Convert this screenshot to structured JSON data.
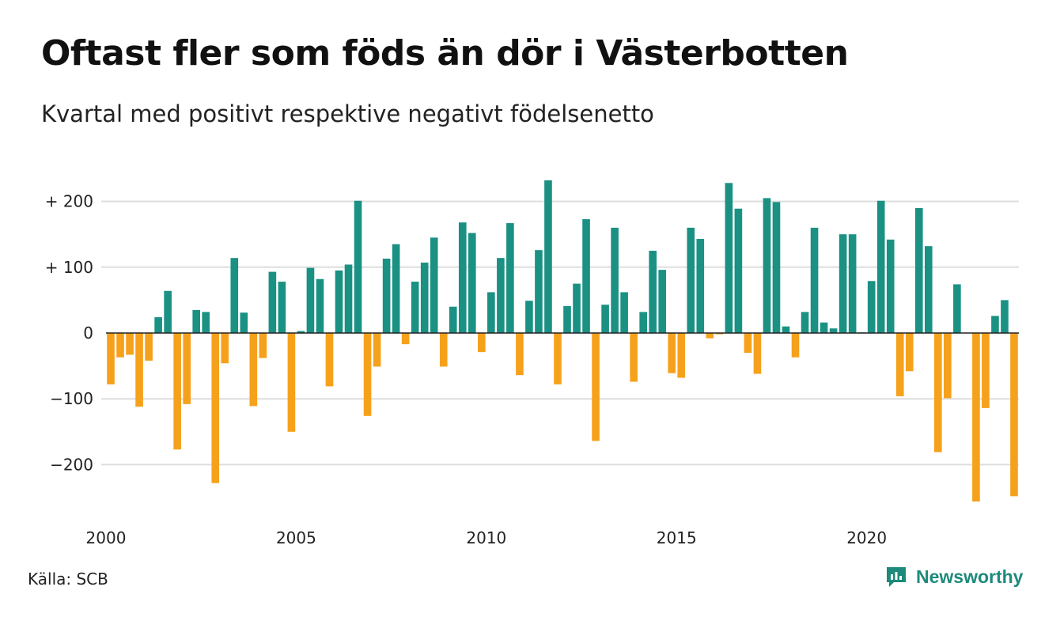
{
  "title": "Oftast fler som föds än dör i Västerbotten",
  "subtitle": "Kvartal med positivt respektive negativt födelsenetto",
  "source": "Källa: SCB",
  "brand": {
    "name": "Newsworthy",
    "icon": "newsworthy-chart-logo-icon"
  },
  "colors": {
    "positive": "#1a9183",
    "negative": "#f6a11b",
    "grid": "#dddddd",
    "zero_line": "#222222",
    "brand": "#1d8a7b"
  },
  "chart_data": {
    "type": "bar",
    "title": "Oftast fler som föds än dör i Västerbotten",
    "subtitle": "Kvartal med positivt respektive negativt födelsenetto",
    "xlabel": "",
    "ylabel": "",
    "x_start_year": 2000,
    "periods_per_year": 4,
    "x_ticks": [
      {
        "value": 2000,
        "label": "2000"
      },
      {
        "value": 2005,
        "label": "2005"
      },
      {
        "value": 2010,
        "label": "2010"
      },
      {
        "value": 2015,
        "label": "2015"
      },
      {
        "value": 2020,
        "label": "2020"
      }
    ],
    "y_ticks": [
      {
        "value": 200,
        "label": "+ 200"
      },
      {
        "value": 100,
        "label": "+ 100"
      },
      {
        "value": 0,
        "label": "0"
      },
      {
        "value": -100,
        "label": "−100"
      },
      {
        "value": -200,
        "label": "−200"
      }
    ],
    "ylim": [
      -260,
      240
    ],
    "grid": true,
    "values": [
      -78,
      -37,
      -33,
      -112,
      -42,
      24,
      64,
      -177,
      -108,
      35,
      32,
      -228,
      -46,
      114,
      31,
      -111,
      -38,
      93,
      78,
      -150,
      3,
      99,
      82,
      -81,
      95,
      104,
      201,
      -126,
      -51,
      113,
      135,
      -17,
      78,
      107,
      145,
      -51,
      40,
      168,
      152,
      -29,
      62,
      114,
      167,
      -64,
      49,
      126,
      232,
      -78,
      41,
      75,
      173,
      -164,
      43,
      160,
      62,
      -74,
      32,
      125,
      96,
      -61,
      -68,
      160,
      143,
      -8,
      -2,
      228,
      189,
      -30,
      -62,
      205,
      199,
      10,
      -37,
      32,
      160,
      16,
      7,
      150,
      150,
      1,
      79,
      201,
      142,
      -96,
      -58,
      190,
      132,
      -181,
      -99,
      74,
      0,
      -256,
      -114,
      26,
      50,
      -248
    ]
  }
}
